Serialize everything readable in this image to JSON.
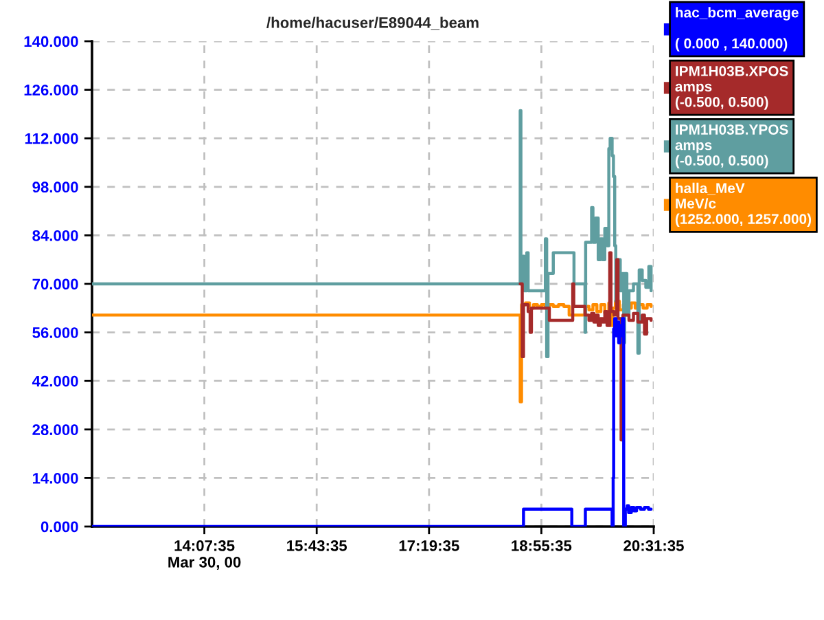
{
  "chart_data": {
    "type": "step",
    "title": "/home/hacuser/E89044_beam",
    "xlim": [
      12.52639,
      20.52639
    ],
    "xticks": [
      {
        "value": 14.12639,
        "label": "14:07:35\nMar 30, 00"
      },
      {
        "value": 15.72639,
        "label": "15:43:35"
      },
      {
        "value": 17.32639,
        "label": "17:19:35"
      },
      {
        "value": 18.92639,
        "label": "18:55:35"
      },
      {
        "value": 20.52639,
        "label": "20:31:35"
      }
    ],
    "ylim": [
      0,
      140
    ],
    "yticks": [
      {
        "value": 0,
        "label": "0.000"
      },
      {
        "value": 14,
        "label": "14.000"
      },
      {
        "value": 28,
        "label": "28.000"
      },
      {
        "value": 42,
        "label": "42.000"
      },
      {
        "value": 56,
        "label": "56.000"
      },
      {
        "value": 70,
        "label": "70.000"
      },
      {
        "value": 84,
        "label": "84.000"
      },
      {
        "value": 98,
        "label": "98.000"
      },
      {
        "value": 112,
        "label": "112.000"
      },
      {
        "value": 126,
        "label": "126.000"
      },
      {
        "value": 140,
        "label": "140.000"
      }
    ],
    "grid": true,
    "legend": "top right",
    "series": [
      {
        "name": "hac_bcm_average\n\n( 0.000 , 140.000)",
        "color": "#0000ff",
        "x": [
          12.52639,
          18.672,
          19.36,
          19.553,
          19.934,
          19.949,
          19.956,
          19.971,
          19.99,
          20.009,
          20.028,
          20.047,
          20.065,
          20.08,
          20.099,
          20.122,
          20.15,
          20.169,
          20.207,
          20.244,
          20.282,
          20.339,
          20.395,
          20.452,
          20.489
        ],
        "values": [
          0,
          5,
          0,
          5,
          0,
          14,
          57,
          60,
          55,
          59,
          53,
          58,
          55,
          60,
          0,
          5,
          6,
          4,
          5.5,
          4.5,
          5.5,
          5,
          5.5,
          5,
          5
        ]
      },
      {
        "name": "IPM1H03B.XPOS\namps\n(-0.500, 0.500)",
        "color": "#a52a2a",
        "x": [
          18.625,
          18.654,
          18.672,
          18.738,
          18.766,
          18.785,
          19.04,
          19.373,
          19.388,
          19.548,
          19.604,
          19.642,
          19.674,
          19.704,
          19.736,
          19.768,
          19.798,
          19.83,
          19.862,
          19.9,
          19.918,
          19.962,
          20.0,
          20.018,
          20.062,
          20.088,
          20.112,
          20.174,
          20.238,
          20.301,
          20.363,
          20.395,
          20.426,
          20.489
        ],
        "values": [
          70,
          49,
          64,
          62,
          56,
          63,
          59.5,
          70,
          63.5,
          61,
          59.5,
          61.5,
          59,
          61,
          58,
          60,
          59,
          62,
          58,
          79,
          62,
          61,
          77,
          60,
          25,
          61,
          61,
          59.5,
          61.5,
          59,
          61,
          55.5,
          60,
          59.5
        ]
      },
      {
        "name": "IPM1H03B.YPOS\namps\n(-0.500, 0.500)",
        "color": "#5f9ea0",
        "x": [
          12.52639,
          18.625,
          18.635,
          18.663,
          18.682,
          18.719,
          18.738,
          18.983,
          19.002,
          19.021,
          19.096,
          19.391,
          19.548,
          19.557,
          19.642,
          19.661,
          19.698,
          19.736,
          19.768,
          19.798,
          19.83,
          19.862,
          19.887,
          19.906,
          19.934,
          19.953,
          19.971,
          19.986,
          20.018,
          20.05,
          20.08,
          20.099,
          20.112,
          20.144,
          20.174,
          20.238,
          20.301,
          20.32,
          20.363,
          20.414,
          20.457,
          20.489
        ],
        "values": [
          70,
          120,
          70,
          78,
          68,
          79,
          68,
          83,
          49,
          73,
          79,
          70,
          56,
          82,
          92,
          82,
          89,
          77,
          83,
          77,
          86,
          81,
          109,
          112,
          107,
          101,
          81,
          65,
          77,
          68,
          73,
          53,
          73,
          61,
          68,
          70,
          50,
          74,
          71,
          69,
          75,
          68
        ]
      },
      {
        "name": "halla_MeV\nMeV/c\n(1252.000, 1257.000)",
        "color": "#ff8c00",
        "x": [
          12.52639,
          18.625,
          18.644,
          18.701,
          18.757,
          18.814,
          18.87,
          18.927,
          18.983,
          19.04,
          19.096,
          19.171,
          19.247,
          19.322,
          19.548,
          19.604,
          19.661,
          19.717,
          19.774,
          19.83,
          19.887,
          19.915,
          19.943,
          19.981,
          20.037,
          20.094,
          20.15,
          20.207,
          20.263,
          20.32,
          20.376,
          20.433,
          20.489
        ],
        "values": [
          61,
          36,
          64,
          64.5,
          63,
          64,
          63.5,
          64,
          63,
          64,
          63.5,
          64,
          63.5,
          61,
          63.5,
          62.5,
          64,
          62,
          64,
          61.5,
          64.5,
          58,
          63,
          65,
          62.5,
          64,
          63,
          64.5,
          63,
          64,
          63,
          64,
          63.5
        ]
      }
    ]
  }
}
